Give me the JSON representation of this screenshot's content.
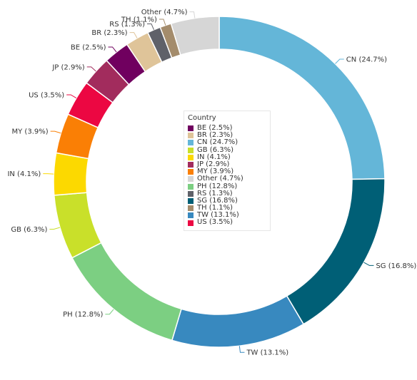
{
  "chart_data": {
    "type": "pie",
    "donut": true,
    "legend_title": "Country",
    "legend_placement": "center",
    "slices": [
      {
        "name": "CN",
        "value": 24.7,
        "label": "CN (24.7%)",
        "color": "#64b6d8"
      },
      {
        "name": "SG",
        "value": 16.8,
        "label": "SG (16.8%)",
        "color": "#005f76"
      },
      {
        "name": "TW",
        "value": 13.1,
        "label": "TW (13.1%)",
        "color": "#3889bf"
      },
      {
        "name": "PH",
        "value": 12.8,
        "label": "PH (12.8%)",
        "color": "#7ccf82"
      },
      {
        "name": "GB",
        "value": 6.3,
        "label": "GB (6.3%)",
        "color": "#c9e02a"
      },
      {
        "name": "IN",
        "value": 4.1,
        "label": "IN (4.1%)",
        "color": "#fcd900"
      },
      {
        "name": "MY",
        "value": 3.9,
        "label": "MY (3.9%)",
        "color": "#fa7f05"
      },
      {
        "name": "US",
        "value": 3.5,
        "label": "US (3.5%)",
        "color": "#ec0742"
      },
      {
        "name": "JP",
        "value": 2.9,
        "label": "JP (2.9%)",
        "color": "#a22c5d"
      },
      {
        "name": "BE",
        "value": 2.5,
        "label": "BE (2.5%)",
        "color": "#70005f"
      },
      {
        "name": "BR",
        "value": 2.3,
        "label": "BR (2.3%)",
        "color": "#dfc499"
      },
      {
        "name": "RS",
        "value": 1.3,
        "label": "RS (1.3%)",
        "color": "#5f6169"
      },
      {
        "name": "TH",
        "value": 1.1,
        "label": "TH (1.1%)",
        "color": "#a48c6c"
      },
      {
        "name": "Other",
        "value": 4.7,
        "label": "Other (4.7%)",
        "color": "#d6d6d6"
      }
    ],
    "legend": [
      {
        "label": "BE (2.5%)",
        "color": "#70005f"
      },
      {
        "label": "BR (2.3%)",
        "color": "#dfc499"
      },
      {
        "label": "CN (24.7%)",
        "color": "#64b6d8"
      },
      {
        "label": "GB (6.3%)",
        "color": "#c9e02a"
      },
      {
        "label": "IN (4.1%)",
        "color": "#fcd900"
      },
      {
        "label": "JP (2.9%)",
        "color": "#a22c5d"
      },
      {
        "label": "MY (3.9%)",
        "color": "#fa7f05"
      },
      {
        "label": "Other (4.7%)",
        "color": "#d6d6d6"
      },
      {
        "label": "PH (12.8%)",
        "color": "#7ccf82"
      },
      {
        "label": "RS (1.3%)",
        "color": "#5f6169"
      },
      {
        "label": "SG (16.8%)",
        "color": "#005f76"
      },
      {
        "label": "TH (1.1%)",
        "color": "#a48c6c"
      },
      {
        "label": "TW (13.1%)",
        "color": "#3889bf"
      },
      {
        "label": "US (3.5%)",
        "color": "#ec0742"
      }
    ]
  }
}
